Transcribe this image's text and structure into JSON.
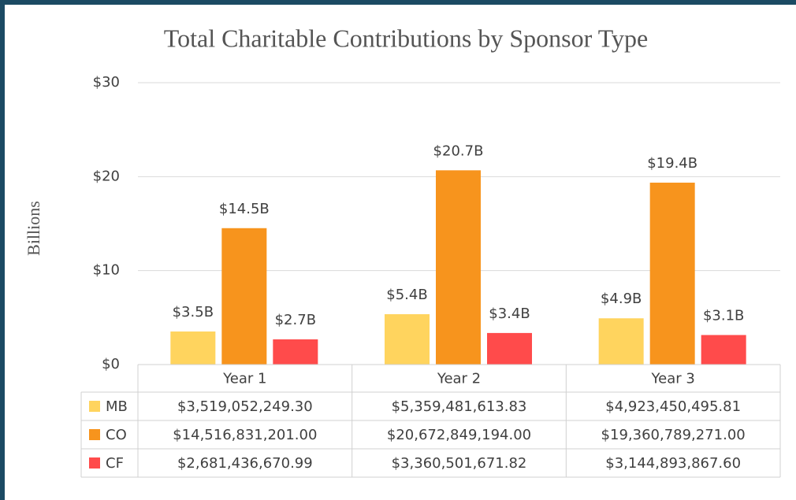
{
  "chart_data": {
    "type": "bar",
    "title": "Total Charitable Contributions by Sponsor Type",
    "y_label": "Billions",
    "categories": [
      "Year 1",
      "Year 2",
      "Year 3"
    ],
    "series": [
      {
        "name": "MB",
        "color": "#ffd45e",
        "values": [
          3.5190522493,
          5.35948161383,
          4.92345049581
        ],
        "value_labels": [
          "$3.5B",
          "$5.4B",
          "$4.9B"
        ],
        "table_labels": [
          "$3,519,052,249.30",
          "$5,359,481,613.83",
          "$4,923,450,495.81"
        ]
      },
      {
        "name": "CO",
        "color": "#f7941d",
        "values": [
          14.516831201,
          20.672849194,
          19.360789271
        ],
        "value_labels": [
          "$14.5B",
          "$20.7B",
          "$19.4B"
        ],
        "table_labels": [
          "$14,516,831,201.00",
          "$20,672,849,194.00",
          "$19,360,789,271.00"
        ]
      },
      {
        "name": "CF",
        "color": "#ff4b4b",
        "values": [
          2.68143667099,
          3.36050167182,
          3.1448938676
        ],
        "value_labels": [
          "$2.7B",
          "$3.4B",
          "$3.1B"
        ],
        "table_labels": [
          "$2,681,436,670.99",
          "$3,360,501,671.82",
          "$3,144,893,867.60"
        ]
      }
    ],
    "ylim": [
      0,
      30
    ],
    "yticks": [
      {
        "value": 0,
        "label": "$0"
      },
      {
        "value": 10,
        "label": "$10"
      },
      {
        "value": 20,
        "label": "$20"
      },
      {
        "value": 30,
        "label": "$30"
      }
    ],
    "grid": true
  }
}
